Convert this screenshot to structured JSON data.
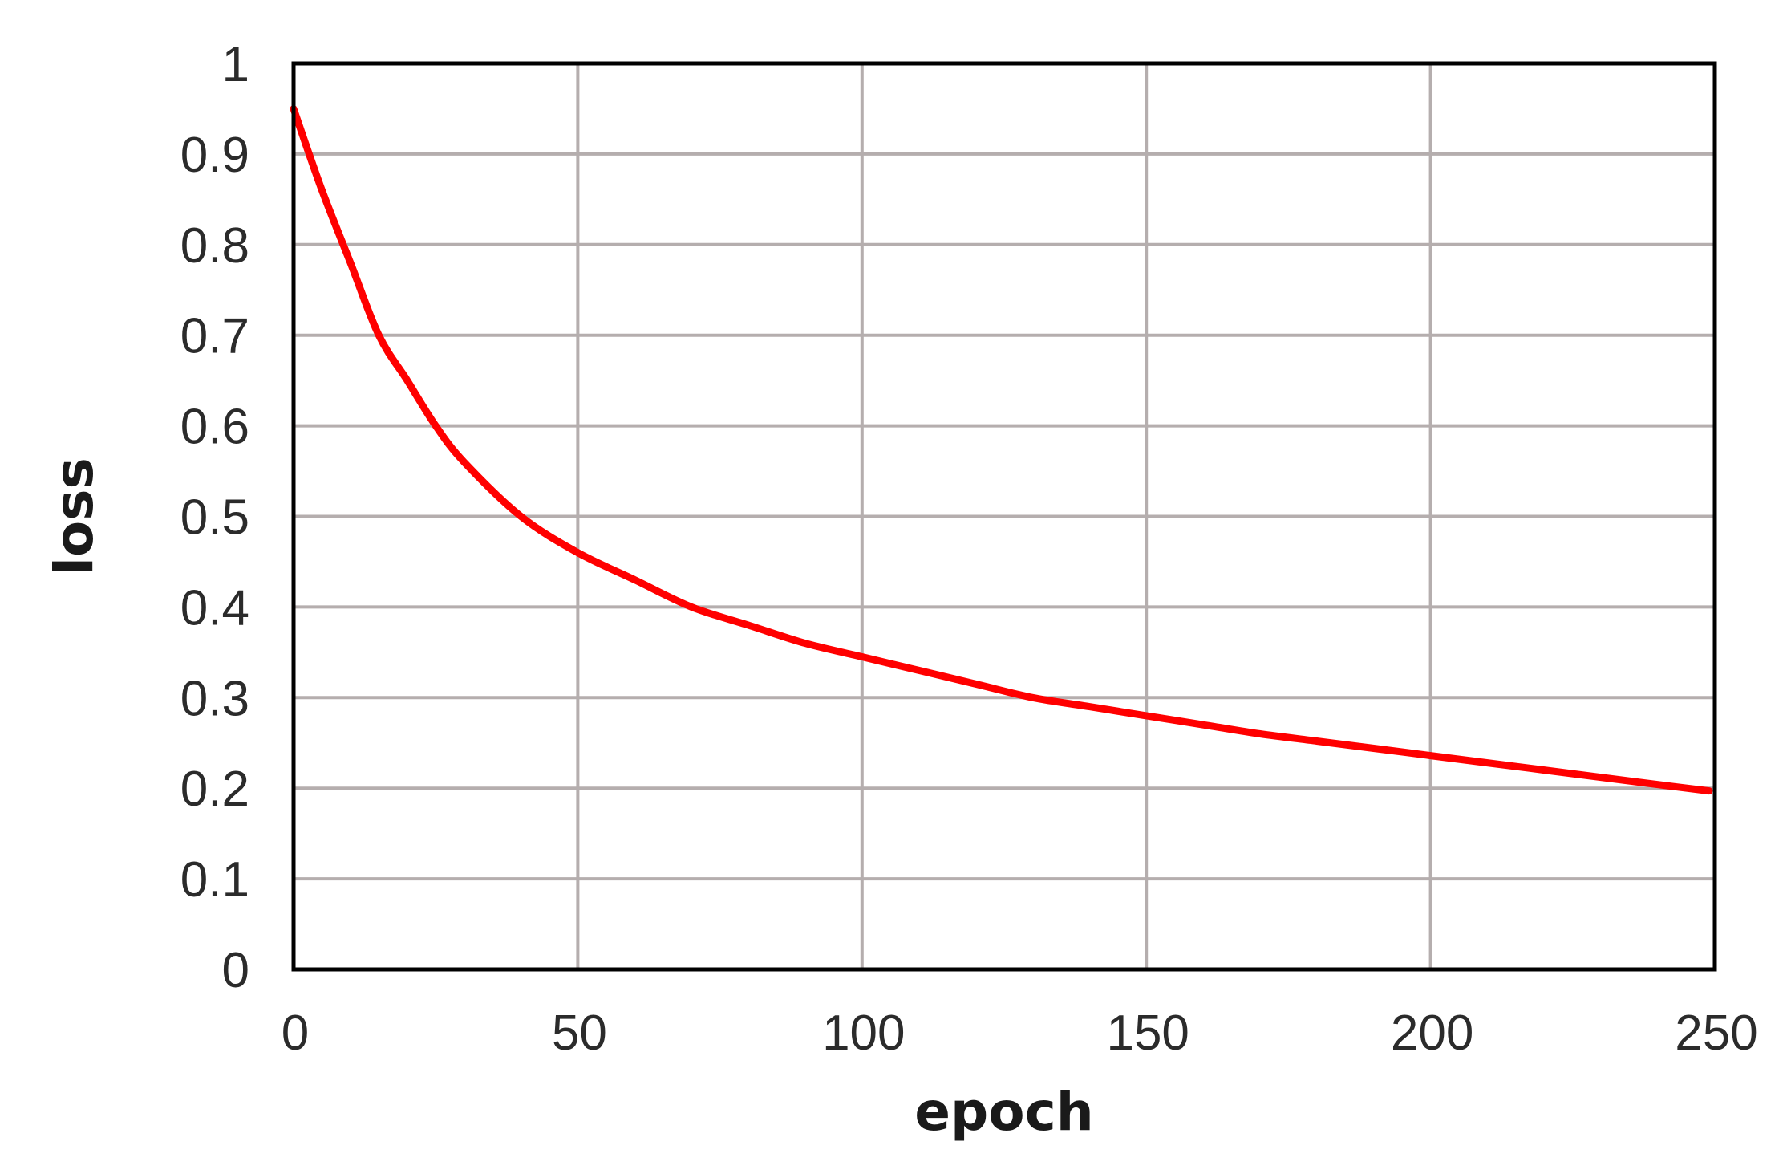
{
  "chart_data": {
    "type": "line",
    "title": "",
    "xlabel": "epoch",
    "ylabel": "loss",
    "xlim": [
      0,
      250
    ],
    "ylim": [
      0,
      1
    ],
    "x_ticks": [
      0,
      50,
      100,
      150,
      200,
      250
    ],
    "x_tick_labels": [
      "0",
      "50",
      "100",
      "150",
      "200",
      "250"
    ],
    "y_ticks": [
      0,
      0.1,
      0.2,
      0.3,
      0.4,
      0.5,
      0.6,
      0.7,
      0.8,
      0.9,
      1
    ],
    "y_tick_labels": [
      "0",
      "0.1",
      "0.2",
      "0.3",
      "0.4",
      "0.5",
      "0.6",
      "0.7",
      "0.8",
      "0.9",
      "1"
    ],
    "grid": true,
    "legend": "none",
    "colors": {
      "line": "#ff0000",
      "grid": "#b5aeae",
      "frame": "#000000"
    },
    "series": [
      {
        "x": [
          0,
          5,
          10,
          15,
          20,
          25,
          30,
          40,
          50,
          60,
          70,
          80,
          90,
          100,
          110,
          120,
          130,
          140,
          150,
          160,
          170,
          180,
          190,
          200,
          210,
          220,
          230,
          240,
          249
        ],
        "y": [
          0.95,
          0.86,
          0.78,
          0.7,
          0.65,
          0.6,
          0.56,
          0.5,
          0.46,
          0.43,
          0.4,
          0.38,
          0.36,
          0.345,
          0.33,
          0.315,
          0.3,
          0.29,
          0.28,
          0.27,
          0.26,
          0.252,
          0.244,
          0.236,
          0.228,
          0.22,
          0.212,
          0.204,
          0.197
        ]
      }
    ]
  }
}
